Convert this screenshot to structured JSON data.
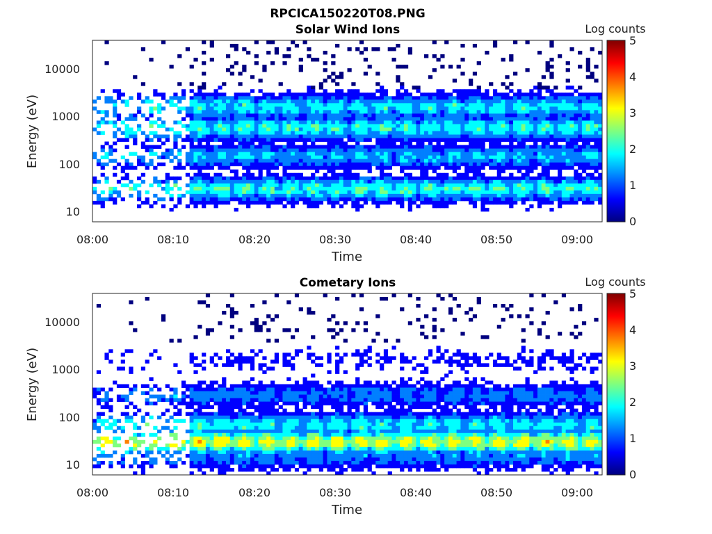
{
  "figure_title": "RPCICA150220T08.PNG",
  "colorscale": [
    "#00007f",
    "#0000ff",
    "#007fff",
    "#00ffff",
    "#7fff7f",
    "#ffff00",
    "#ff7f00",
    "#ff0000",
    "#7f0000"
  ],
  "chart_data": [
    {
      "type": "heatmap",
      "title": "Solar Wind Ions",
      "xlabel": "Time",
      "ylabel": "Energy (eV)",
      "xticks": [
        "08:00",
        "08:10",
        "08:20",
        "08:30",
        "08:40",
        "08:50",
        "09:00"
      ],
      "yticks": [
        "10",
        "100",
        "1000",
        "10000"
      ],
      "yscale": "log",
      "ylim": [
        6,
        45000
      ],
      "xlim": [
        "08:00",
        "09:03"
      ],
      "colorbar": {
        "label": "Log counts",
        "ticks": [
          "0",
          "1",
          "2",
          "3",
          "4",
          "5"
        ],
        "range": [
          0,
          5
        ]
      },
      "band_features": [
        {
          "energy_eV": 1700,
          "log_counts": 2.0
        },
        {
          "energy_eV": 600,
          "log_counts": 2.2
        },
        {
          "energy_eV": 150,
          "log_counts": 1.7
        },
        {
          "energy_eV": 30,
          "log_counts": 2.3
        }
      ]
    },
    {
      "type": "heatmap",
      "title": "Cometary Ions",
      "xlabel": "Time",
      "ylabel": "Energy (eV)",
      "xticks": [
        "08:00",
        "08:10",
        "08:20",
        "08:30",
        "08:40",
        "08:50",
        "09:00"
      ],
      "yticks": [
        "10",
        "100",
        "1000",
        "10000"
      ],
      "yscale": "log",
      "ylim": [
        6,
        45000
      ],
      "xlim": [
        "08:00",
        "09:03"
      ],
      "colorbar": {
        "label": "Log counts",
        "ticks": [
          "0",
          "1",
          "2",
          "3",
          "4",
          "5"
        ],
        "range": [
          0,
          5
        ]
      },
      "band_features": [
        {
          "energy_eV": 1700,
          "log_counts": 0.4
        },
        {
          "energy_eV": 300,
          "log_counts": 1.3
        },
        {
          "energy_eV": 70,
          "log_counts": 2.1
        },
        {
          "energy_eV": 30,
          "log_counts": 3.3
        },
        {
          "energy_eV": 15,
          "log_counts": 1.4
        }
      ]
    }
  ]
}
